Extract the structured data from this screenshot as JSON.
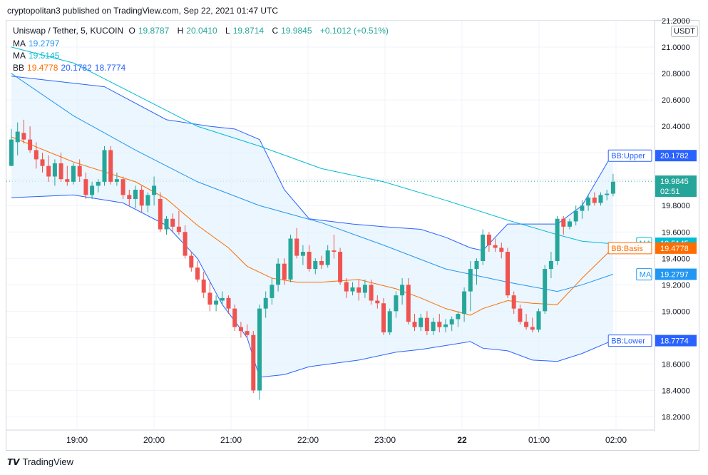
{
  "header": {
    "published": "cryptopolitan3 published on TradingView.com, Sep 22, 2021 01:47 UTC"
  },
  "legend": {
    "symbol": "Uniswap / Tether, 5, KUCOIN",
    "o_label": "O",
    "o": "19.8787",
    "h_label": "H",
    "h": "20.0410",
    "l_label": "L",
    "l": "19.8714",
    "c_label": "C",
    "c": "19.9845",
    "change": "+0.1012 (+0.51%)",
    "ma1_label": "MA",
    "ma1": "19.2797",
    "ma2_label": "MA",
    "ma2": "19.5145",
    "bb_label": "BB",
    "bb_basis": "19.4778",
    "bb_upper": "20.1782",
    "bb_lower": "18.7774"
  },
  "currency": "USDT",
  "footer": {
    "brand": "TradingView"
  },
  "colors": {
    "up": "#26a69a",
    "down": "#ef5350",
    "bb_band": "#2962ff",
    "bb_basis": "#ff6d00",
    "ma_slow": "#00bcd4",
    "ma_fast": "#2196f3",
    "fill": "#e3f2fd"
  },
  "chart_data": {
    "type": "candlestick",
    "ylim": [
      18.1,
      21.2
    ],
    "x_range": [
      "18:24",
      "02:24"
    ],
    "yticks": [
      "18.2000",
      "18.4000",
      "18.6000",
      "18.8000",
      "19.0000",
      "19.2000",
      "19.4000",
      "19.6000",
      "19.8000",
      "20.0000",
      "20.2000",
      "20.4000",
      "20.6000",
      "20.8000",
      "21.0000",
      "21.2000"
    ],
    "xticks": [
      {
        "label": "19:00",
        "t": 36
      },
      {
        "label": "20:00",
        "t": 96
      },
      {
        "label": "21:00",
        "t": 156
      },
      {
        "label": "22:00",
        "t": 216
      },
      {
        "label": "23:00",
        "t": 276
      },
      {
        "label": "22",
        "t": 336,
        "bold": true
      },
      {
        "label": "01:00",
        "t": 396
      },
      {
        "label": "02:00",
        "t": 456
      }
    ],
    "time_step_min": 5,
    "candles": [
      [
        20.1,
        20.38,
        20.1,
        20.3
      ],
      [
        20.28,
        20.43,
        20.18,
        20.36
      ],
      [
        20.35,
        20.45,
        20.27,
        20.3
      ],
      [
        20.3,
        20.4,
        20.2,
        20.22
      ],
      [
        20.22,
        20.28,
        20.08,
        20.15
      ],
      [
        20.15,
        20.2,
        20.05,
        20.1
      ],
      [
        20.1,
        20.18,
        19.98,
        20.02
      ],
      [
        20.02,
        20.15,
        19.95,
        20.12
      ],
      [
        20.12,
        20.2,
        19.98,
        20.0
      ],
      [
        20.0,
        20.1,
        19.95,
        19.98
      ],
      [
        19.98,
        20.12,
        19.96,
        20.1
      ],
      [
        20.1,
        20.15,
        19.98,
        20.02
      ],
      [
        20.0,
        20.05,
        19.85,
        19.88
      ],
      [
        19.88,
        19.98,
        19.85,
        19.95
      ],
      [
        19.95,
        20.0,
        19.9,
        19.98
      ],
      [
        19.98,
        20.25,
        19.95,
        20.22
      ],
      [
        20.22,
        20.25,
        19.96,
        19.98
      ],
      [
        19.98,
        20.05,
        19.95,
        20.0
      ],
      [
        20.0,
        20.02,
        19.85,
        19.88
      ],
      [
        19.88,
        19.92,
        19.8,
        19.85
      ],
      [
        19.85,
        19.95,
        19.78,
        19.92
      ],
      [
        19.92,
        19.95,
        19.75,
        19.8
      ],
      [
        19.8,
        19.9,
        19.75,
        19.88
      ],
      [
        19.88,
        20.02,
        19.8,
        19.95
      ],
      [
        19.85,
        19.9,
        19.6,
        19.62
      ],
      [
        19.62,
        19.72,
        19.58,
        19.7
      ],
      [
        19.7,
        19.74,
        19.6,
        19.64
      ],
      [
        19.64,
        19.76,
        19.58,
        19.6
      ],
      [
        19.6,
        19.65,
        19.4,
        19.42
      ],
      [
        19.42,
        19.45,
        19.3,
        19.33
      ],
      [
        19.33,
        19.38,
        19.22,
        19.24
      ],
      [
        19.24,
        19.3,
        19.1,
        19.14
      ],
      [
        19.14,
        19.22,
        19.0,
        19.05
      ],
      [
        19.05,
        19.12,
        19.0,
        19.08
      ],
      [
        19.08,
        19.15,
        19.05,
        19.1
      ],
      [
        19.1,
        19.12,
        18.98,
        19.02
      ],
      [
        19.02,
        19.05,
        18.85,
        18.88
      ],
      [
        18.88,
        18.92,
        18.8,
        18.85
      ],
      [
        18.85,
        18.9,
        18.8,
        18.82
      ],
      [
        18.82,
        18.85,
        18.38,
        18.4
      ],
      [
        18.4,
        19.05,
        18.33,
        19.02
      ],
      [
        19.02,
        19.15,
        18.95,
        19.1
      ],
      [
        19.1,
        19.25,
        19.05,
        19.2
      ],
      [
        19.2,
        19.4,
        19.15,
        19.36
      ],
      [
        19.36,
        19.4,
        19.2,
        19.24
      ],
      [
        19.24,
        19.58,
        19.22,
        19.55
      ],
      [
        19.55,
        19.63,
        19.4,
        19.42
      ],
      [
        19.42,
        19.5,
        19.35,
        19.45
      ],
      [
        19.45,
        19.5,
        19.3,
        19.32
      ],
      [
        19.32,
        19.4,
        19.28,
        19.38
      ],
      [
        19.38,
        19.42,
        19.32,
        19.35
      ],
      [
        19.35,
        19.5,
        19.33,
        19.46
      ],
      [
        19.46,
        19.58,
        19.4,
        19.45
      ],
      [
        19.45,
        19.48,
        19.2,
        19.22
      ],
      [
        19.22,
        19.25,
        19.1,
        19.15
      ],
      [
        19.15,
        19.22,
        19.12,
        19.18
      ],
      [
        19.18,
        19.24,
        19.08,
        19.14
      ],
      [
        19.14,
        19.24,
        19.1,
        19.2
      ],
      [
        19.2,
        19.24,
        19.05,
        19.08
      ],
      [
        19.08,
        19.12,
        19.02,
        19.06
      ],
      [
        19.06,
        19.1,
        18.82,
        18.84
      ],
      [
        18.84,
        19.02,
        18.82,
        19.0
      ],
      [
        19.0,
        19.15,
        18.95,
        19.12
      ],
      [
        19.12,
        19.25,
        19.05,
        19.2
      ],
      [
        19.2,
        19.25,
        18.9,
        18.92
      ],
      [
        18.92,
        18.98,
        18.85,
        18.88
      ],
      [
        18.88,
        18.98,
        18.85,
        18.95
      ],
      [
        18.95,
        19.0,
        18.82,
        18.85
      ],
      [
        18.85,
        18.95,
        18.82,
        18.92
      ],
      [
        18.92,
        18.98,
        18.84,
        18.88
      ],
      [
        18.88,
        18.94,
        18.84,
        18.9
      ],
      [
        18.9,
        18.96,
        18.85,
        18.94
      ],
      [
        18.94,
        19.0,
        18.88,
        18.98
      ],
      [
        18.98,
        19.18,
        18.92,
        19.15
      ],
      [
        19.15,
        19.38,
        19.0,
        19.32
      ],
      [
        19.32,
        19.4,
        19.2,
        19.38
      ],
      [
        19.38,
        19.62,
        19.35,
        19.58
      ],
      [
        19.58,
        19.6,
        19.45,
        19.5
      ],
      [
        19.5,
        19.55,
        19.45,
        19.48
      ],
      [
        19.48,
        19.52,
        19.4,
        19.45
      ],
      [
        19.45,
        19.48,
        19.1,
        19.12
      ],
      [
        19.12,
        19.15,
        18.98,
        19.02
      ],
      [
        19.02,
        19.05,
        18.9,
        18.92
      ],
      [
        18.92,
        18.98,
        18.86,
        18.88
      ],
      [
        18.88,
        18.95,
        18.84,
        18.86
      ],
      [
        18.86,
        19.02,
        18.84,
        19.0
      ],
      [
        19.0,
        19.35,
        18.98,
        19.32
      ],
      [
        19.32,
        19.45,
        19.25,
        19.38
      ],
      [
        19.38,
        19.72,
        19.35,
        19.7
      ],
      [
        19.7,
        19.72,
        19.58,
        19.64
      ],
      [
        19.64,
        19.7,
        19.62,
        19.68
      ],
      [
        19.68,
        19.8,
        19.65,
        19.76
      ],
      [
        19.76,
        19.84,
        19.7,
        19.8
      ],
      [
        19.8,
        19.88,
        19.76,
        19.86
      ],
      [
        19.86,
        19.9,
        19.8,
        19.82
      ],
      [
        19.82,
        19.9,
        19.8,
        19.88
      ],
      [
        19.88,
        19.92,
        19.84,
        19.89
      ],
      [
        19.89,
        20.04,
        19.87,
        19.98
      ]
    ],
    "series": [
      {
        "name": "BB",
        "role": "upper",
        "values": [
          [
            0,
            20.78
          ],
          [
            15,
            20.7
          ],
          [
            25,
            20.45
          ],
          [
            32,
            20.4
          ],
          [
            36,
            20.38
          ],
          [
            40,
            20.3
          ],
          [
            44,
            19.92
          ],
          [
            48,
            19.7
          ],
          [
            55,
            19.66
          ],
          [
            60,
            19.64
          ],
          [
            66,
            19.62
          ],
          [
            70,
            19.56
          ],
          [
            74,
            19.48
          ],
          [
            76,
            19.46
          ],
          [
            80,
            19.66
          ],
          [
            84,
            19.66
          ],
          [
            88,
            19.66
          ],
          [
            92,
            19.8
          ],
          [
            97,
            20.2
          ]
        ]
      },
      {
        "name": "BB",
        "role": "lower",
        "values": [
          [
            0,
            19.86
          ],
          [
            10,
            19.88
          ],
          [
            18,
            19.82
          ],
          [
            25,
            19.65
          ],
          [
            30,
            19.4
          ],
          [
            34,
            19.05
          ],
          [
            38,
            18.8
          ],
          [
            40,
            18.5
          ],
          [
            44,
            18.52
          ],
          [
            48,
            18.58
          ],
          [
            56,
            18.63
          ],
          [
            62,
            18.69
          ],
          [
            66,
            18.71
          ],
          [
            70,
            18.74
          ],
          [
            74,
            18.77
          ],
          [
            76,
            18.72
          ],
          [
            80,
            18.7
          ],
          [
            84,
            18.63
          ],
          [
            88,
            18.62
          ],
          [
            92,
            18.68
          ],
          [
            97,
            18.78
          ]
        ]
      },
      {
        "name": "BB",
        "role": "basis",
        "values": [
          [
            0,
            20.32
          ],
          [
            10,
            20.13
          ],
          [
            20,
            19.98
          ],
          [
            25,
            19.85
          ],
          [
            30,
            19.65
          ],
          [
            35,
            19.48
          ],
          [
            38,
            19.34
          ],
          [
            42,
            19.25
          ],
          [
            46,
            19.22
          ],
          [
            50,
            19.22
          ],
          [
            56,
            19.24
          ],
          [
            62,
            19.17
          ],
          [
            66,
            19.1
          ],
          [
            70,
            19.02
          ],
          [
            74,
            18.97
          ],
          [
            76,
            19.02
          ],
          [
            80,
            19.08
          ],
          [
            84,
            19.06
          ],
          [
            88,
            19.05
          ],
          [
            92,
            19.25
          ],
          [
            97,
            19.48
          ]
        ]
      },
      {
        "name": "MA",
        "role": "slow",
        "values": [
          [
            0,
            21.0
          ],
          [
            10,
            20.88
          ],
          [
            20,
            20.64
          ],
          [
            30,
            20.4
          ],
          [
            40,
            20.25
          ],
          [
            50,
            20.08
          ],
          [
            60,
            19.98
          ],
          [
            70,
            19.84
          ],
          [
            80,
            19.69
          ],
          [
            88,
            19.58
          ],
          [
            92,
            19.53
          ],
          [
            97,
            19.51
          ]
        ]
      },
      {
        "name": "MA",
        "role": "fast",
        "values": [
          [
            0,
            20.8
          ],
          [
            10,
            20.48
          ],
          [
            20,
            20.22
          ],
          [
            30,
            19.98
          ],
          [
            40,
            19.8
          ],
          [
            50,
            19.67
          ],
          [
            60,
            19.5
          ],
          [
            70,
            19.32
          ],
          [
            80,
            19.22
          ],
          [
            88,
            19.15
          ],
          [
            92,
            19.2
          ],
          [
            97,
            19.28
          ]
        ]
      }
    ],
    "labels": [
      {
        "text": "BB:Upper",
        "value": "20.1782",
        "y": 20.1782,
        "color": "#2962ff"
      },
      {
        "text": "",
        "value": "19.9845",
        "sub": "02:51",
        "y": 19.9845,
        "color": "#26a69a"
      },
      {
        "text": "MA",
        "value": "19.5145",
        "y": 19.5145,
        "color": "#00bcd4"
      },
      {
        "text": "BB:Basis",
        "value": "19.4778",
        "y": 19.4778,
        "color": "#ff6d00"
      },
      {
        "text": "MA",
        "value": "19.2797",
        "y": 19.2797,
        "color": "#2196f3"
      },
      {
        "text": "BB:Lower",
        "value": "18.7774",
        "y": 18.7774,
        "color": "#2962ff"
      }
    ],
    "last_price": 19.9845
  }
}
